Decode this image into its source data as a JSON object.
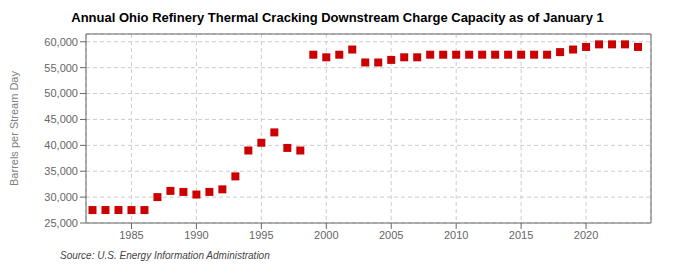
{
  "chart_data": {
    "type": "scatter",
    "title": "Annual Ohio Refinery Thermal Cracking Downstream Charge Capacity as of January 1",
    "ylabel": "Barrels per Stream Day",
    "annotations": [
      "Source: U.S. Energy Information Administration"
    ],
    "color": "#cc0000",
    "marker": "square",
    "grid": true,
    "x": [
      1982,
      1983,
      1984,
      1985,
      1986,
      1987,
      1988,
      1989,
      1990,
      1991,
      1992,
      1993,
      1994,
      1995,
      1996,
      1997,
      1998,
      1999,
      2000,
      2001,
      2002,
      2003,
      2004,
      2005,
      2006,
      2007,
      2008,
      2009,
      2010,
      2011,
      2012,
      2013,
      2014,
      2015,
      2016,
      2017,
      2018,
      2019,
      2020,
      2021,
      2022,
      2023,
      2024
    ],
    "values": [
      27500,
      27500,
      27500,
      27500,
      27500,
      30000,
      31200,
      31000,
      30500,
      31000,
      31500,
      34000,
      39000,
      40500,
      42500,
      39500,
      39000,
      57500,
      57000,
      57500,
      58500,
      56000,
      56000,
      56500,
      57000,
      57000,
      57500,
      57500,
      57500,
      57500,
      57500,
      57500,
      57500,
      57500,
      57500,
      57500,
      58000,
      58500,
      59000,
      59500,
      59500,
      59500,
      59000
    ],
    "xlim": [
      1981.5,
      2025
    ],
    "ylim": [
      25000,
      61500
    ],
    "xticks": [
      1985,
      1990,
      1995,
      2000,
      2005,
      2010,
      2015,
      2020
    ],
    "yticks": [
      {
        "value": 25000,
        "label": "25,000"
      },
      {
        "value": 30000,
        "label": "30,000"
      },
      {
        "value": 35000,
        "label": "35,000"
      },
      {
        "value": 40000,
        "label": "40,000"
      },
      {
        "value": 45000,
        "label": "45,000"
      },
      {
        "value": 50000,
        "label": "50,000"
      },
      {
        "value": 55000,
        "label": "55,000"
      },
      {
        "value": 60000,
        "label": "60,000"
      }
    ]
  }
}
